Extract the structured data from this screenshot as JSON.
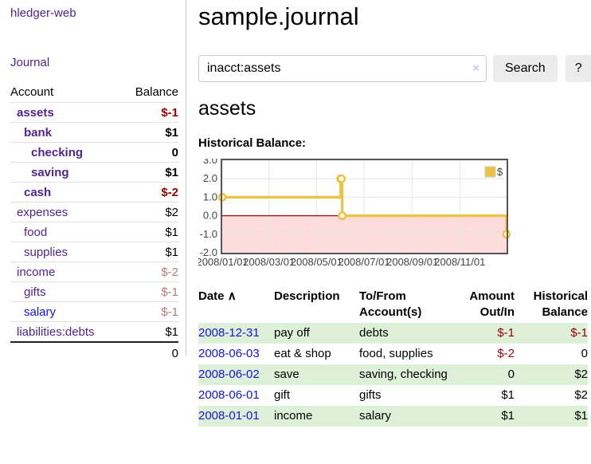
{
  "app": {
    "brand": "hledger-web",
    "nav": {
      "journal": "Journal"
    }
  },
  "sidebar": {
    "header": {
      "account": "Account",
      "balance": "Balance"
    },
    "accounts": [
      {
        "name": "assets",
        "balance": "$-1",
        "depth": 1,
        "emph": true,
        "amount_tone": "neg-strong",
        "link_tone": "purple"
      },
      {
        "name": "bank",
        "balance": "$1",
        "depth": 2,
        "emph": true,
        "amount_tone": "pos-strong",
        "link_tone": "purple"
      },
      {
        "name": "checking",
        "balance": "0",
        "depth": 3,
        "emph": true,
        "amount_tone": "pos-strong",
        "link_tone": "purple"
      },
      {
        "name": "saving",
        "balance": "$1",
        "depth": 3,
        "emph": true,
        "amount_tone": "pos-strong",
        "link_tone": "purple"
      },
      {
        "name": "cash",
        "balance": "$-2",
        "depth": 2,
        "emph": true,
        "amount_tone": "neg-strong",
        "link_tone": "purple"
      },
      {
        "name": "expenses",
        "balance": "$2",
        "depth": 1,
        "emph": false,
        "amount_tone": "plain",
        "link_tone": "purple"
      },
      {
        "name": "food",
        "balance": "$1",
        "depth": 2,
        "emph": false,
        "amount_tone": "plain",
        "link_tone": "purple"
      },
      {
        "name": "supplies",
        "balance": "$1",
        "depth": 2,
        "emph": false,
        "amount_tone": "plain",
        "link_tone": "purple"
      },
      {
        "name": "income",
        "balance": "$-2",
        "depth": 1,
        "emph": false,
        "amount_tone": "neg-dim",
        "link_tone": "purple"
      },
      {
        "name": "gifts",
        "balance": "$-1",
        "depth": 2,
        "emph": false,
        "amount_tone": "neg-dim",
        "link_tone": "purple"
      },
      {
        "name": "salary",
        "balance": "$-1",
        "depth": 2,
        "emph": false,
        "amount_tone": "neg-dim",
        "link_tone": "blue"
      },
      {
        "name": "liabilities:debts",
        "balance": "$1",
        "depth": 1,
        "emph": false,
        "amount_tone": "plain",
        "link_tone": "purple"
      }
    ],
    "total": "0"
  },
  "main": {
    "title": "sample.journal",
    "search": {
      "value": "inacct:assets",
      "clear_icon": "×",
      "search_button": "Search",
      "help_button": "?"
    },
    "account_heading": "assets",
    "chart_label": "Historical Balance:"
  },
  "chart_data": {
    "type": "line",
    "title": "Historical Balance",
    "step": true,
    "x_range": [
      "2008-01-01",
      "2008-12-31"
    ],
    "ylim": [
      -2,
      3
    ],
    "x_ticks": [
      "2008/01/01",
      "2008/03/01",
      "2008/05/01",
      "2008/07/01",
      "2008/09/01",
      "2008/11/01"
    ],
    "y_ticks": [
      "3.0",
      "2.0",
      "1.0",
      "0.0",
      "-1.0",
      "-2.0"
    ],
    "legend": {
      "position": "top-right",
      "items": [
        {
          "label": "$",
          "color": "#EDC240"
        }
      ]
    },
    "series": [
      {
        "name": "$",
        "color": "#EDC240",
        "points": [
          [
            "2008-01-01",
            1
          ],
          [
            "2008-06-01",
            2
          ],
          [
            "2008-06-02",
            2
          ],
          [
            "2008-06-03",
            0
          ],
          [
            "2008-12-31",
            -1
          ]
        ]
      }
    ],
    "grid": true,
    "negative_region_color": "#ffdcdc",
    "zero_line_color": "#a01010",
    "border_color": "#555555",
    "gridline_color": "#e6e6e6"
  },
  "register": {
    "headers": {
      "date": "Date",
      "sort_asc_icon": "∧",
      "description": "Description",
      "accounts": "To/From Account(s)",
      "amount": "Amount Out/In",
      "balance": "Historical Balance"
    },
    "rows": [
      {
        "date": "2008-12-31",
        "description": "pay off",
        "accounts": "debts",
        "amount": "$-1",
        "balance": "$-1",
        "amount_neg": true,
        "balance_neg": true,
        "shaded": true
      },
      {
        "date": "2008-06-03",
        "description": "eat & shop",
        "accounts": "food, supplies",
        "amount": "$-2",
        "balance": "0",
        "amount_neg": true,
        "balance_neg": false,
        "shaded": false
      },
      {
        "date": "2008-06-02",
        "description": "save",
        "accounts": "saving, checking",
        "amount": "0",
        "balance": "$2",
        "amount_neg": false,
        "balance_neg": false,
        "shaded": true
      },
      {
        "date": "2008-06-01",
        "description": "gift",
        "accounts": "gifts",
        "amount": "$1",
        "balance": "$2",
        "amount_neg": false,
        "balance_neg": false,
        "shaded": false
      },
      {
        "date": "2008-01-01",
        "description": "income",
        "accounts": "salary",
        "amount": "$1",
        "balance": "$1",
        "amount_neg": false,
        "balance_neg": false,
        "shaded": true
      }
    ]
  }
}
